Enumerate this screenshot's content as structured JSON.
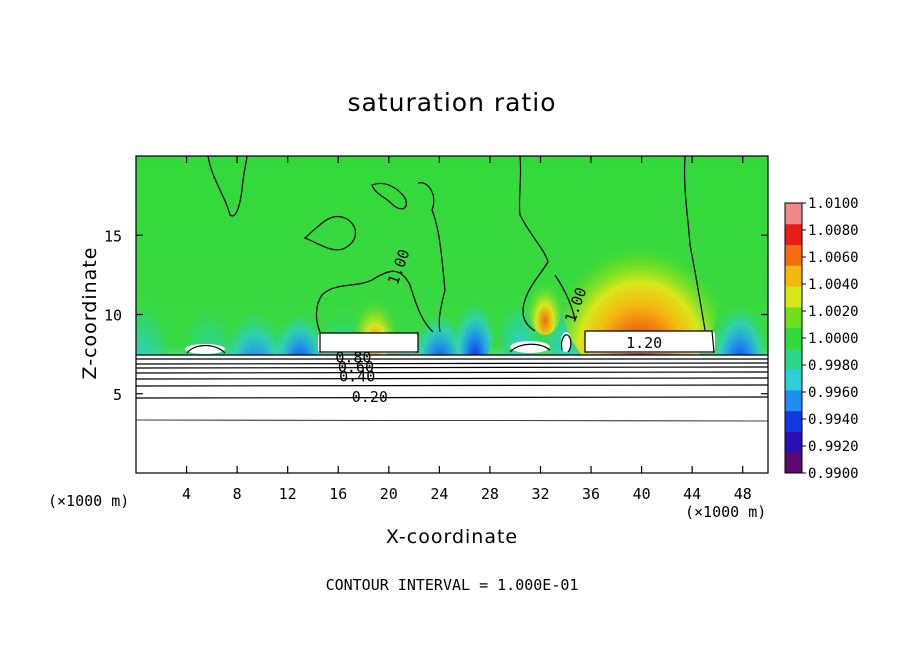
{
  "chart_data": {
    "type": "heatmap",
    "title": "saturation ratio",
    "xlabel": "X-coordinate",
    "ylabel": "Z-coordinate",
    "x_unit_label": "(×1000 m)",
    "x_unit_label_right": "(×1000 m)",
    "xlim": [
      0,
      50
    ],
    "ylim": [
      0,
      20
    ],
    "x_ticks": [
      4,
      8,
      12,
      16,
      20,
      24,
      28,
      32,
      36,
      40,
      44,
      48
    ],
    "y_ticks": [
      5,
      10,
      15
    ],
    "colorbar": {
      "min": 0.99,
      "max": 1.01,
      "tick_labels": [
        "1.0100",
        "1.0080",
        "1.0060",
        "1.0040",
        "1.0020",
        "1.0000",
        "0.9980",
        "0.9960",
        "0.9940",
        "0.9920",
        "0.9900"
      ],
      "colors": [
        "#5a0a6e",
        "#2b0fb0",
        "#1438e0",
        "#1e8cf0",
        "#2cd0d6",
        "#2ed68a",
        "#33d93a",
        "#6fe020",
        "#d7e81a",
        "#f4b811",
        "#f26e0e",
        "#e81e14",
        "#f08a8a"
      ]
    },
    "contour_labels": [
      {
        "label": "0.20",
        "value": 0.2,
        "x": 18.5,
        "z": 4.8
      },
      {
        "label": "0.40",
        "value": 0.4,
        "x": 17.5,
        "z": 6.1
      },
      {
        "label": "0.60",
        "value": 0.6,
        "x": 17.4,
        "z": 6.7
      },
      {
        "label": "0.80",
        "value": 0.8,
        "x": 17.2,
        "z": 7.3
      },
      {
        "label": "1.00",
        "value": 1.0,
        "x": 20.8,
        "z": 13.0
      },
      {
        "label": "1.00",
        "value": 1.0,
        "x": 34.8,
        "z": 10.6
      },
      {
        "label": "1.20",
        "value": 1.2,
        "x": 40.2,
        "z": 8.2
      }
    ],
    "contour_interval_text": "CONTOUR INTERVAL =  1.000E-01",
    "grid": false,
    "legend": "colorbar-right"
  }
}
